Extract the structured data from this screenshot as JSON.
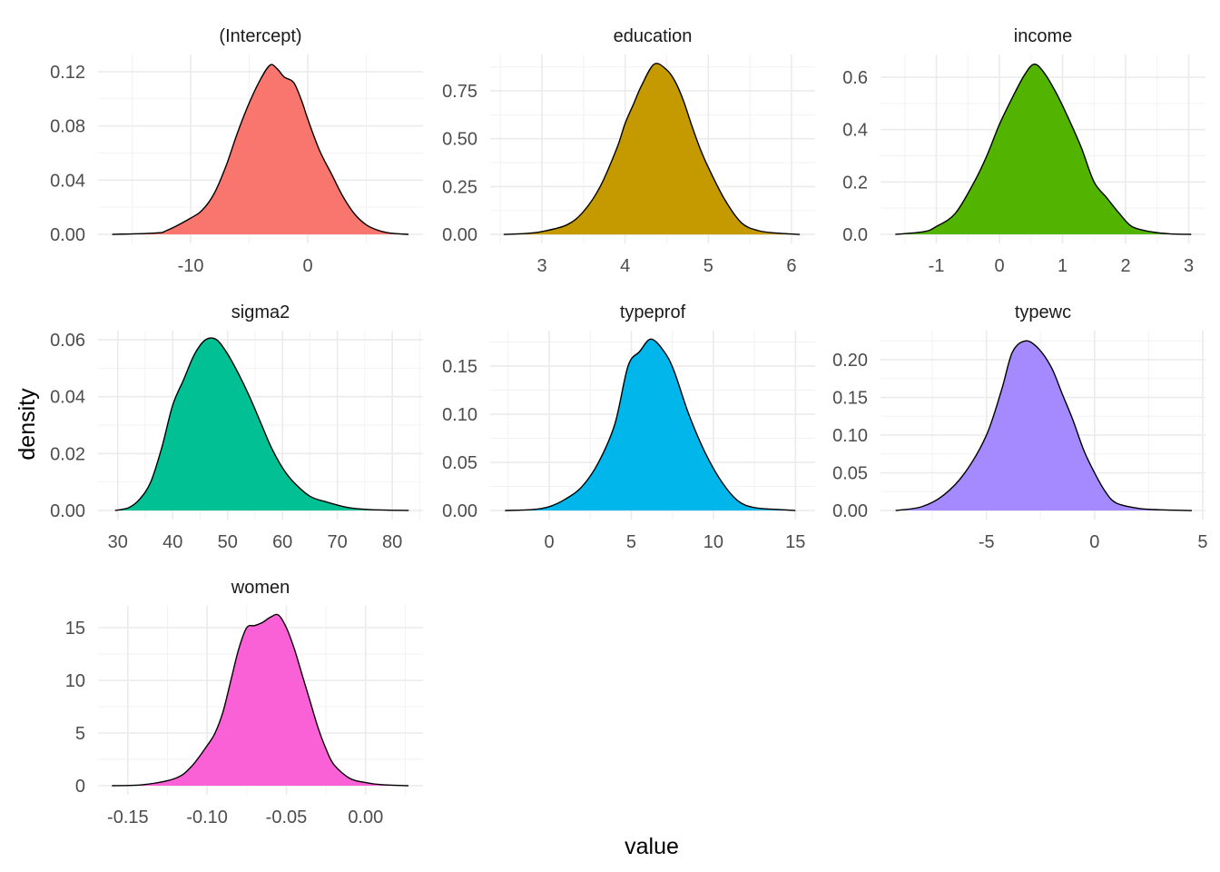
{
  "chart_data": {
    "type": "area",
    "subtype": "faceted density",
    "xlabel": "value",
    "ylabel": "density",
    "grid": true,
    "legend": "none",
    "panels": [
      {
        "title": "(Intercept)",
        "color": "#F8766D",
        "xlim": [
          -17.91,
          9.84
        ],
        "ylim": [
          -0.0067,
          0.1327
        ],
        "xticks": [
          -10,
          0
        ],
        "xtick_labels": [
          "-10",
          "0"
        ],
        "yticks": [
          0,
          0.04,
          0.08,
          0.12
        ],
        "ytick_labels": [
          "0.00",
          "0.04",
          "0.08",
          "0.12"
        ],
        "x": [
          -16.7,
          -13,
          -12,
          -10,
          -9,
          -8,
          -7,
          -6,
          -5,
          -4,
          -3.2,
          -2.6,
          -2,
          -1.2,
          -0.5,
          0,
          1,
          2,
          3,
          4,
          5,
          6,
          7,
          8.6
        ],
        "y": [
          0,
          0.001,
          0.003,
          0.012,
          0.018,
          0.03,
          0.05,
          0.075,
          0.097,
          0.115,
          0.125,
          0.122,
          0.116,
          0.112,
          0.098,
          0.085,
          0.062,
          0.045,
          0.028,
          0.015,
          0.007,
          0.003,
          0.001,
          0
        ]
      },
      {
        "title": "education",
        "color": "#C49A00",
        "xlim": [
          2.378,
          6.284
        ],
        "ylim": [
          -0.047,
          0.94
        ],
        "xticks": [
          3,
          4,
          5,
          6
        ],
        "xtick_labels": [
          "3",
          "4",
          "5",
          "6"
        ],
        "yticks": [
          0,
          0.25,
          0.5,
          0.75
        ],
        "ytick_labels": [
          "0.00",
          "0.25",
          "0.50",
          "0.75"
        ],
        "x": [
          2.54,
          2.8,
          3,
          3.3,
          3.5,
          3.7,
          3.9,
          4.0,
          4.1,
          4.2,
          4.35,
          4.5,
          4.6,
          4.7,
          4.8,
          4.9,
          5.0,
          5.2,
          5.4,
          5.6,
          5.8,
          6.1
        ],
        "y": [
          0,
          0.005,
          0.015,
          0.05,
          0.12,
          0.25,
          0.45,
          0.58,
          0.68,
          0.78,
          0.89,
          0.86,
          0.8,
          0.7,
          0.57,
          0.45,
          0.35,
          0.18,
          0.06,
          0.02,
          0.008,
          0
        ]
      },
      {
        "title": "income",
        "color": "#53B400",
        "xlim": [
          -1.885,
          3.266
        ],
        "ylim": [
          -0.0347,
          0.687
        ],
        "xticks": [
          -1,
          0,
          1,
          2,
          3
        ],
        "xtick_labels": [
          "-1",
          "0",
          "1",
          "2",
          "3"
        ],
        "yticks": [
          0,
          0.2,
          0.4,
          0.6
        ],
        "ytick_labels": [
          "0.0",
          "0.2",
          "0.4",
          "0.6"
        ],
        "x": [
          -1.65,
          -1.2,
          -1,
          -0.7,
          -0.4,
          -0.2,
          0,
          0.2,
          0.4,
          0.55,
          0.7,
          0.9,
          1.1,
          1.3,
          1.5,
          1.7,
          1.9,
          2.1,
          2.4,
          2.7,
          3.04
        ],
        "y": [
          0,
          0.01,
          0.03,
          0.08,
          0.2,
          0.3,
          0.42,
          0.52,
          0.61,
          0.65,
          0.62,
          0.54,
          0.44,
          0.33,
          0.2,
          0.14,
          0.08,
          0.03,
          0.01,
          0.002,
          0
        ]
      },
      {
        "title": "sigma2",
        "color": "#00C094",
        "xlim": [
          26.4,
          85.6
        ],
        "ylim": [
          -0.0032,
          0.0632
        ],
        "xticks": [
          30,
          40,
          50,
          60,
          70,
          80
        ],
        "xtick_labels": [
          "30",
          "40",
          "50",
          "60",
          "70",
          "80"
        ],
        "yticks": [
          0,
          0.02,
          0.04,
          0.06
        ],
        "ytick_labels": [
          "0.00",
          "0.02",
          "0.04",
          "0.06"
        ],
        "x": [
          29.5,
          32,
          34,
          36,
          38,
          40,
          42,
          44,
          46,
          48,
          50,
          52,
          54,
          56,
          58,
          60,
          62,
          65,
          68,
          72,
          76,
          83
        ],
        "y": [
          0,
          0.001,
          0.004,
          0.01,
          0.022,
          0.037,
          0.046,
          0.055,
          0.06,
          0.06,
          0.055,
          0.048,
          0.04,
          0.031,
          0.022,
          0.015,
          0.01,
          0.005,
          0.003,
          0.001,
          0.0003,
          0
        ]
      },
      {
        "title": "typeprof",
        "color": "#00B6EB",
        "xlim": [
          -3.6,
          16.2
        ],
        "ylim": [
          -0.0094,
          0.1868
        ],
        "xticks": [
          0,
          5,
          10,
          15
        ],
        "xtick_labels": [
          "0",
          "5",
          "10",
          "15"
        ],
        "yticks": [
          0,
          0.05,
          0.1,
          0.15
        ],
        "ytick_labels": [
          "0.00",
          "0.05",
          "0.10",
          "0.15"
        ],
        "x": [
          -2.7,
          -1,
          0,
          1,
          2,
          3,
          4,
          4.8,
          5.5,
          6.2,
          7,
          7.6,
          8.5,
          9.5,
          10.5,
          11.5,
          12.5,
          14,
          15
        ],
        "y": [
          0,
          0.001,
          0.004,
          0.012,
          0.025,
          0.05,
          0.09,
          0.15,
          0.165,
          0.178,
          0.165,
          0.145,
          0.1,
          0.06,
          0.03,
          0.01,
          0.003,
          0.001,
          0
        ]
      },
      {
        "title": "typewc",
        "color": "#A58AFF",
        "xlim": [
          -9.9,
          5.13
        ],
        "ylim": [
          -0.012,
          0.2386
        ],
        "xticks": [
          -5,
          0,
          5
        ],
        "xtick_labels": [
          "-5",
          "0",
          "5"
        ],
        "yticks": [
          0,
          0.05,
          0.1,
          0.15,
          0.2
        ],
        "ytick_labels": [
          "0.00",
          "0.05",
          "0.10",
          "0.15",
          "0.20"
        ],
        "x": [
          -9.2,
          -8,
          -7,
          -6,
          -5,
          -4.3,
          -3.8,
          -3.2,
          -2.6,
          -2,
          -1.5,
          -1,
          -0.5,
          0,
          0.5,
          1,
          2,
          3,
          4.5
        ],
        "y": [
          0,
          0.005,
          0.02,
          0.05,
          0.1,
          0.16,
          0.21,
          0.225,
          0.215,
          0.19,
          0.155,
          0.12,
          0.08,
          0.05,
          0.025,
          0.01,
          0.003,
          0.001,
          0
        ]
      },
      {
        "title": "women",
        "color": "#FB61D7",
        "xlim": [
          -0.1688,
          0.0362
        ],
        "ylim": [
          -0.862,
          17.07
        ],
        "xticks": [
          -0.15,
          -0.1,
          -0.05,
          0
        ],
        "xtick_labels": [
          "-0.15",
          "-0.10",
          "-0.05",
          "0.00"
        ],
        "yticks": [
          0,
          5,
          10,
          15
        ],
        "ytick_labels": [
          "0",
          "5",
          "10",
          "15"
        ],
        "x": [
          -0.16,
          -0.14,
          -0.12,
          -0.11,
          -0.1,
          -0.095,
          -0.09,
          -0.085,
          -0.08,
          -0.075,
          -0.07,
          -0.065,
          -0.06,
          -0.055,
          -0.05,
          -0.045,
          -0.04,
          -0.035,
          -0.03,
          -0.025,
          -0.02,
          -0.01,
          0,
          0.01,
          0.027
        ],
        "y": [
          0,
          0.1,
          0.7,
          1.8,
          3.8,
          5,
          7,
          10,
          13,
          15,
          15.2,
          15.5,
          16,
          16.2,
          15,
          13,
          10.5,
          8,
          5.5,
          3.5,
          2,
          0.7,
          0.3,
          0.1,
          0
        ]
      }
    ]
  }
}
